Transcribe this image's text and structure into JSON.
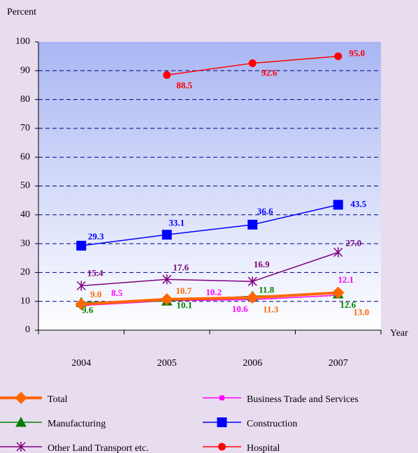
{
  "chart_data": {
    "type": "line",
    "y_label": "Percent",
    "x_label": "Year",
    "categories": [
      "2004",
      "2005",
      "2006",
      "2007"
    ],
    "ylim": [
      0,
      100
    ],
    "yticks": [
      0,
      10,
      20,
      30,
      40,
      50,
      60,
      70,
      80,
      90,
      100
    ],
    "grid": true,
    "series": [
      {
        "name": "Total",
        "color": "#ff6600",
        "marker": "diamond",
        "values": [
          9.0,
          10.7,
          11.3,
          13.0
        ],
        "value_labels": [
          "9.0",
          "10.7",
          "11.3",
          "13.0"
        ]
      },
      {
        "name": "Business Trade and Services",
        "color": "#ff00ff",
        "marker": "small-square",
        "values": [
          8.5,
          10.2,
          10.6,
          12.1
        ],
        "value_labels": [
          "8.5",
          "10.2",
          "10.6",
          "12.1"
        ]
      },
      {
        "name": "Manufacturing",
        "color": "#008000",
        "marker": "triangle",
        "values": [
          9.6,
          10.1,
          11.8,
          12.6
        ],
        "value_labels": [
          "9.6",
          "10.1",
          "11.8",
          "12.6"
        ]
      },
      {
        "name": "Construction",
        "color": "#0000ff",
        "marker": "square",
        "values": [
          29.3,
          33.1,
          36.6,
          43.5
        ],
        "value_labels": [
          "29.3",
          "33.1",
          "36.6",
          "43.5"
        ]
      },
      {
        "name": "Other Land Transport etc.",
        "color": "#800080",
        "marker": "asterisk",
        "values": [
          15.4,
          17.6,
          16.9,
          27.0
        ],
        "value_labels": [
          "15.4",
          "17.6",
          "16.9",
          "27.0"
        ]
      },
      {
        "name": "Hospital",
        "color": "#ff0000",
        "marker": "circle",
        "values": [
          null,
          88.5,
          92.6,
          95.0
        ],
        "value_labels": [
          null,
          "88.5",
          "92.6",
          "95.0"
        ]
      }
    ]
  }
}
